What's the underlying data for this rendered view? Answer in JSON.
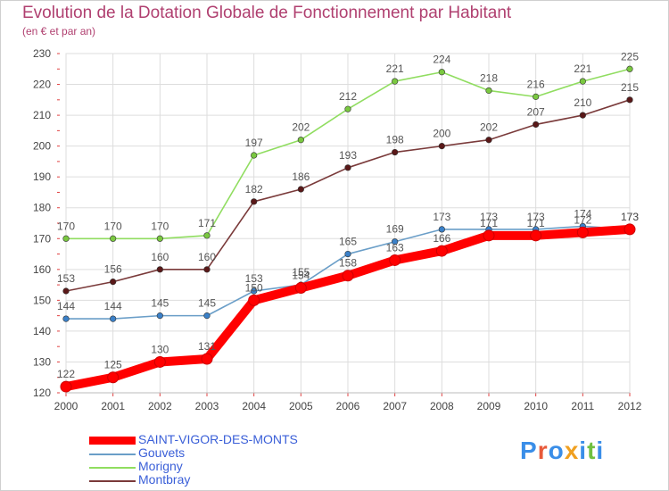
{
  "title": "Evolution de la Dotation Globale de Fonctionnement par Habitant",
  "subtitle": "(en € et par an)",
  "logo": "Proxiti",
  "chart_data": {
    "type": "line",
    "title": "Evolution de la Dotation Globale de Fonctionnement par Habitant",
    "subtitle": "(en € et par an)",
    "x": [
      "2000",
      "2001",
      "2002",
      "2003",
      "2004",
      "2005",
      "2006",
      "2007",
      "2008",
      "2009",
      "2010",
      "2011",
      "2012"
    ],
    "ylim": [
      120,
      230
    ],
    "yticks": [
      120,
      130,
      140,
      150,
      160,
      170,
      180,
      190,
      200,
      210,
      220,
      230
    ],
    "grid": true,
    "legend": "bottom-left",
    "series": [
      {
        "name": "Morigny",
        "color": "#90dd60",
        "marker": "#7ac840",
        "values": [
          170,
          170,
          170,
          171,
          197,
          202,
          212,
          221,
          224,
          218,
          216,
          221,
          225
        ]
      },
      {
        "name": "Montbray",
        "color": "#7a3a3a",
        "marker": "#5a1818",
        "values": [
          153,
          156,
          160,
          160,
          182,
          186,
          193,
          198,
          200,
          202,
          207,
          210,
          215
        ]
      },
      {
        "name": "Gouvets",
        "color": "#6a9ec8",
        "marker": "#3a80c8",
        "values": [
          144,
          144,
          145,
          145,
          153,
          155,
          165,
          169,
          173,
          173,
          173,
          174,
          173
        ]
      },
      {
        "name": "SAINT-VIGOR-DES-MONTS",
        "color": "#ff0000",
        "marker": "#ff0000",
        "values": [
          122,
          125,
          130,
          131,
          150,
          154,
          158,
          163,
          166,
          171,
          171,
          172,
          173
        ]
      }
    ]
  }
}
